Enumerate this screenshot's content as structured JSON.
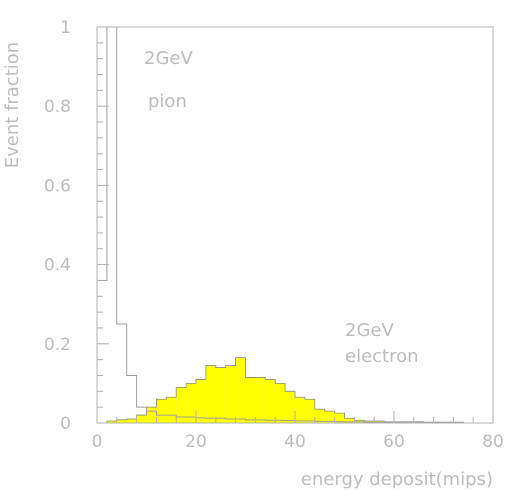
{
  "chart_data": {
    "type": "histogram",
    "xlabel": "energy deposit(mips)",
    "ylabel": "Event fraction",
    "xlim": [
      0,
      80
    ],
    "ylim": [
      0,
      1
    ],
    "xticks": [
      0,
      20,
      40,
      60,
      80
    ],
    "xtick_labels": [
      "0",
      "20",
      "40",
      "60",
      "80"
    ],
    "yticks": [
      0,
      0.2,
      0.4,
      0.6,
      0.8,
      1
    ],
    "ytick_labels": [
      "0",
      "0.2",
      "0.4",
      "0.6",
      "0.8",
      "1"
    ],
    "grid": false,
    "bin_width": 2,
    "bin_edges_start": 0,
    "annotations": [
      {
        "text": "2GeV",
        "series": "pion"
      },
      {
        "text": "pion",
        "series": "pion"
      },
      {
        "text": "2GeV",
        "series": "electron"
      },
      {
        "text": "electron",
        "series": "electron"
      }
    ],
    "series": [
      {
        "key": "pion",
        "style": "outline",
        "color": "#9e9e9e",
        "values": [
          0.36,
          1.0,
          0.25,
          0.12,
          0.04,
          0.03,
          0.02,
          0.02,
          0.015,
          0.015,
          0.013,
          0.012,
          0.012,
          0.01,
          0.01,
          0.008,
          0.008,
          0.007,
          0.007,
          0.006,
          0.005,
          0.005,
          0.004,
          0.004,
          0.003,
          0.003,
          0.003,
          0.002,
          0.002,
          0.002,
          0.002,
          0.001,
          0.001,
          0.001,
          0.001,
          0.001,
          0.001,
          0.0,
          0.0,
          0.0
        ]
      },
      {
        "key": "electron",
        "style": "filled",
        "color": "#ffff00",
        "values": [
          0.0,
          0.005,
          0.008,
          0.01,
          0.02,
          0.04,
          0.06,
          0.065,
          0.09,
          0.1,
          0.11,
          0.145,
          0.14,
          0.145,
          0.165,
          0.115,
          0.115,
          0.11,
          0.1,
          0.08,
          0.065,
          0.06,
          0.035,
          0.03,
          0.025,
          0.012,
          0.007,
          0.005,
          0.005,
          0.003,
          0.003,
          0.003,
          0.003,
          0.002,
          0.002,
          0.002,
          0.002,
          0.0,
          0.0,
          0.0
        ]
      }
    ]
  }
}
